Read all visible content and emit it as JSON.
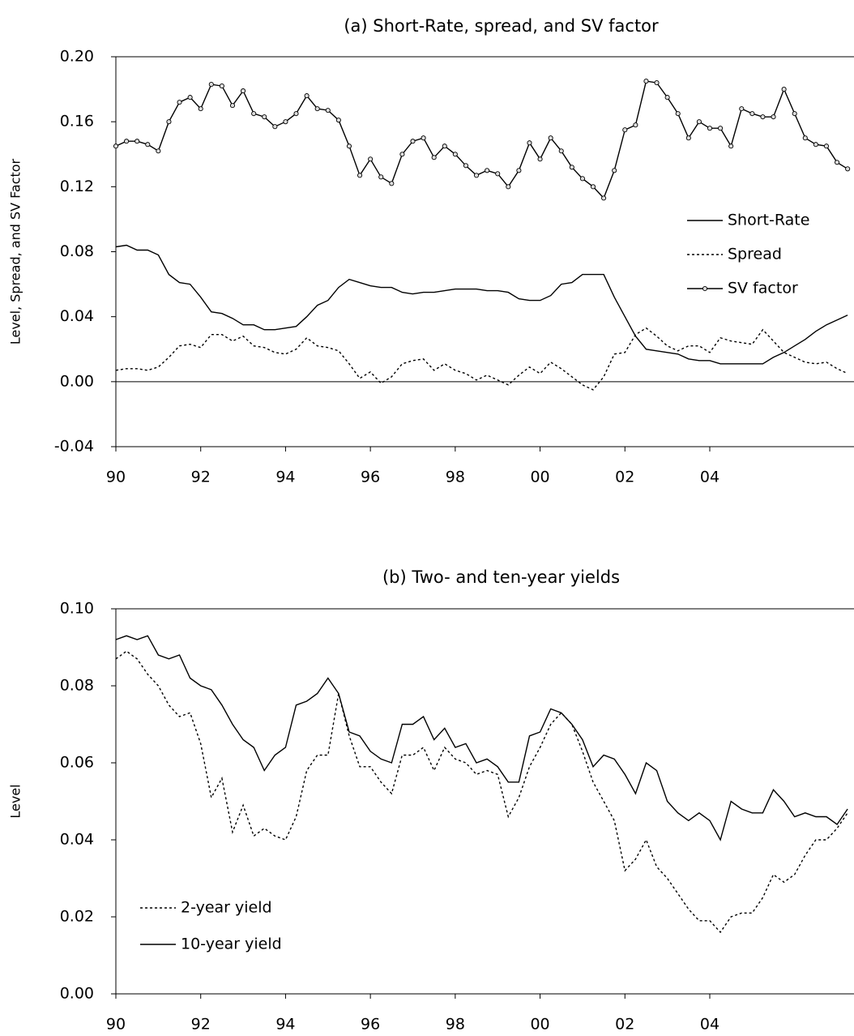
{
  "chart_data": [
    {
      "type": "line",
      "title": "(a) Short-Rate, spread, and SV factor",
      "ylabel": "Level, Spread, and SV Factor",
      "x": [
        1990,
        1990.25,
        1990.5,
        1990.75,
        1991,
        1991.25,
        1991.5,
        1991.75,
        1992,
        1992.25,
        1992.5,
        1992.75,
        1993,
        1993.25,
        1993.5,
        1993.75,
        1994,
        1994.25,
        1994.5,
        1994.75,
        1995,
        1995.25,
        1995.5,
        1995.75,
        1996,
        1996.25,
        1996.5,
        1996.75,
        1997,
        1997.25,
        1997.5,
        1997.75,
        1998,
        1998.25,
        1998.5,
        1998.75,
        1999,
        1999.25,
        1999.5,
        1999.75,
        2000,
        2000.25,
        2000.5,
        2000.75,
        2001,
        2001.25,
        2001.5,
        2001.75,
        2002,
        2002.25,
        2002.5,
        2002.75,
        2003,
        2003.25,
        2003.5,
        2003.75,
        2004,
        2004.25,
        2004.5,
        2004.75,
        2005,
        2005.25,
        2005.5,
        2005.75,
        2006,
        2006.25,
        2006.5,
        2006.75,
        2007,
        2007.25
      ],
      "xlim": [
        1990,
        2007.4
      ],
      "xticks": [
        {
          "value": 1990,
          "label": "90"
        },
        {
          "value": 1992,
          "label": "92"
        },
        {
          "value": 1994,
          "label": "94"
        },
        {
          "value": 1996,
          "label": "96"
        },
        {
          "value": 1998,
          "label": "98"
        },
        {
          "value": 2000,
          "label": "00"
        },
        {
          "value": 2002,
          "label": "02"
        },
        {
          "value": 2004,
          "label": "04"
        }
      ],
      "ylim": [
        -0.04,
        0.2
      ],
      "yticks": [
        -0.04,
        {
          "value": 0,
          "label": "0.00"
        },
        0.04,
        0.08,
        0.12,
        0.16,
        {
          "value": 0.2,
          "label": "0.20"
        }
      ],
      "zero_line": true,
      "legend": "right",
      "series": [
        {
          "name": "Short-Rate",
          "color": "#000000",
          "dash": false,
          "marker": false,
          "values": [
            0.083,
            0.084,
            0.081,
            0.081,
            0.078,
            0.066,
            0.061,
            0.06,
            0.052,
            0.043,
            0.042,
            0.039,
            0.035,
            0.035,
            0.032,
            0.032,
            0.033,
            0.034,
            0.04,
            0.047,
            0.05,
            0.058,
            0.063,
            0.061,
            0.059,
            0.058,
            0.058,
            0.055,
            0.054,
            0.055,
            0.055,
            0.056,
            0.057,
            0.057,
            0.057,
            0.056,
            0.056,
            0.055,
            0.051,
            0.05,
            0.05,
            0.053,
            0.06,
            0.061,
            0.066,
            0.066,
            0.066,
            0.052,
            0.04,
            0.028,
            0.02,
            0.019,
            0.018,
            0.017,
            0.014,
            0.013,
            0.013,
            0.011,
            0.011,
            0.011,
            0.011,
            0.011,
            0.015,
            0.018,
            0.022,
            0.026,
            0.031,
            0.035,
            0.038,
            0.041
          ]
        },
        {
          "name": "Spread",
          "color": "#000000",
          "dash": true,
          "marker": false,
          "values": [
            0.007,
            0.008,
            0.008,
            0.007,
            0.009,
            0.015,
            0.022,
            0.023,
            0.021,
            0.029,
            0.029,
            0.025,
            0.028,
            0.022,
            0.021,
            0.018,
            0.017,
            0.02,
            0.027,
            0.022,
            0.021,
            0.019,
            0.011,
            0.002,
            0.006,
            -0.001,
            0.003,
            0.011,
            0.013,
            0.014,
            0.007,
            0.011,
            0.007,
            0.005,
            0.001,
            0.004,
            0.001,
            -0.002,
            0.004,
            0.009,
            0.005,
            0.012,
            0.008,
            0.003,
            -0.002,
            -0.005,
            0.003,
            0.017,
            0.018,
            0.029,
            0.033,
            0.028,
            0.022,
            0.019,
            0.022,
            0.022,
            0.018,
            0.027,
            0.025,
            0.024,
            0.023,
            0.032,
            0.025,
            0.018,
            0.015,
            0.012,
            0.011,
            0.012,
            0.008,
            0.005
          ]
        },
        {
          "name": "SV factor",
          "color": "#000000",
          "dash": false,
          "marker": true,
          "values": [
            0.145,
            0.148,
            0.148,
            0.146,
            0.142,
            0.16,
            0.172,
            0.175,
            0.168,
            0.183,
            0.182,
            0.17,
            0.179,
            0.165,
            0.163,
            0.157,
            0.16,
            0.165,
            0.176,
            0.168,
            0.167,
            0.161,
            0.145,
            0.127,
            0.137,
            0.126,
            0.122,
            0.14,
            0.148,
            0.15,
            0.138,
            0.145,
            0.14,
            0.133,
            0.127,
            0.13,
            0.128,
            0.12,
            0.13,
            0.147,
            0.137,
            0.15,
            0.142,
            0.132,
            0.125,
            0.12,
            0.113,
            0.13,
            0.155,
            0.158,
            0.185,
            0.184,
            0.175,
            0.165,
            0.15,
            0.16,
            0.156,
            0.156,
            0.145,
            0.168,
            0.165,
            0.163,
            0.163,
            0.18,
            0.165,
            0.15,
            0.146,
            0.145,
            0.135,
            0.131
          ]
        }
      ]
    },
    {
      "type": "line",
      "title": "(b) Two- and ten-year yields",
      "ylabel": "Level",
      "x": [
        1990,
        1990.25,
        1990.5,
        1990.75,
        1991,
        1991.25,
        1991.5,
        1991.75,
        1992,
        1992.25,
        1992.5,
        1992.75,
        1993,
        1993.25,
        1993.5,
        1993.75,
        1994,
        1994.25,
        1994.5,
        1994.75,
        1995,
        1995.25,
        1995.5,
        1995.75,
        1996,
        1996.25,
        1996.5,
        1996.75,
        1997,
        1997.25,
        1997.5,
        1997.75,
        1998,
        1998.25,
        1998.5,
        1998.75,
        1999,
        1999.25,
        1999.5,
        1999.75,
        2000,
        2000.25,
        2000.5,
        2000.75,
        2001,
        2001.25,
        2001.5,
        2001.75,
        2002,
        2002.25,
        2002.5,
        2002.75,
        2003,
        2003.25,
        2003.5,
        2003.75,
        2004,
        2004.25,
        2004.5,
        2004.75,
        2005,
        2005.25,
        2005.5,
        2005.75,
        2006,
        2006.25,
        2006.5,
        2006.75,
        2007,
        2007.25
      ],
      "xlim": [
        1990,
        2007.4
      ],
      "xticks": [
        {
          "value": 1990,
          "label": "90"
        },
        {
          "value": 1992,
          "label": "92"
        },
        {
          "value": 1994,
          "label": "94"
        },
        {
          "value": 1996,
          "label": "96"
        },
        {
          "value": 1998,
          "label": "98"
        },
        {
          "value": 2000,
          "label": "00"
        },
        {
          "value": 2002,
          "label": "02"
        },
        {
          "value": 2004,
          "label": "04"
        }
      ],
      "ylim": [
        0,
        0.1
      ],
      "yticks": [
        {
          "value": 0,
          "label": "0.00"
        },
        0.02,
        0.04,
        0.06,
        0.08,
        {
          "value": 0.1,
          "label": "0.10"
        }
      ],
      "zero_line": false,
      "legend": "lower left",
      "series": [
        {
          "name": "2-year yield",
          "color": "#000000",
          "dash": true,
          "marker": false,
          "values": [
            0.087,
            0.089,
            0.087,
            0.083,
            0.08,
            0.075,
            0.072,
            0.073,
            0.065,
            0.051,
            0.056,
            0.042,
            0.049,
            0.041,
            0.043,
            0.041,
            0.04,
            0.046,
            0.058,
            0.062,
            0.062,
            0.078,
            0.067,
            0.059,
            0.059,
            0.055,
            0.052,
            0.062,
            0.062,
            0.064,
            0.058,
            0.064,
            0.061,
            0.06,
            0.057,
            0.058,
            0.057,
            0.046,
            0.051,
            0.059,
            0.064,
            0.07,
            0.073,
            0.07,
            0.063,
            0.055,
            0.05,
            0.045,
            0.032,
            0.035,
            0.04,
            0.033,
            0.03,
            0.026,
            0.022,
            0.019,
            0.019,
            0.016,
            0.02,
            0.021,
            0.021,
            0.025,
            0.031,
            0.029,
            0.031,
            0.036,
            0.04,
            0.04,
            0.043,
            0.047
          ]
        },
        {
          "name": "10-year yield",
          "color": "#000000",
          "dash": false,
          "marker": false,
          "values": [
            0.092,
            0.093,
            0.092,
            0.093,
            0.088,
            0.087,
            0.088,
            0.082,
            0.08,
            0.079,
            0.075,
            0.07,
            0.066,
            0.064,
            0.058,
            0.062,
            0.064,
            0.075,
            0.076,
            0.078,
            0.082,
            0.078,
            0.068,
            0.067,
            0.063,
            0.061,
            0.06,
            0.07,
            0.07,
            0.072,
            0.066,
            0.069,
            0.064,
            0.065,
            0.06,
            0.061,
            0.059,
            0.055,
            0.055,
            0.067,
            0.068,
            0.074,
            0.073,
            0.07,
            0.066,
            0.059,
            0.062,
            0.061,
            0.057,
            0.052,
            0.06,
            0.058,
            0.05,
            0.047,
            0.045,
            0.047,
            0.045,
            0.04,
            0.05,
            0.048,
            0.047,
            0.047,
            0.053,
            0.05,
            0.046,
            0.047,
            0.046,
            0.046,
            0.044,
            0.048
          ]
        }
      ]
    }
  ]
}
